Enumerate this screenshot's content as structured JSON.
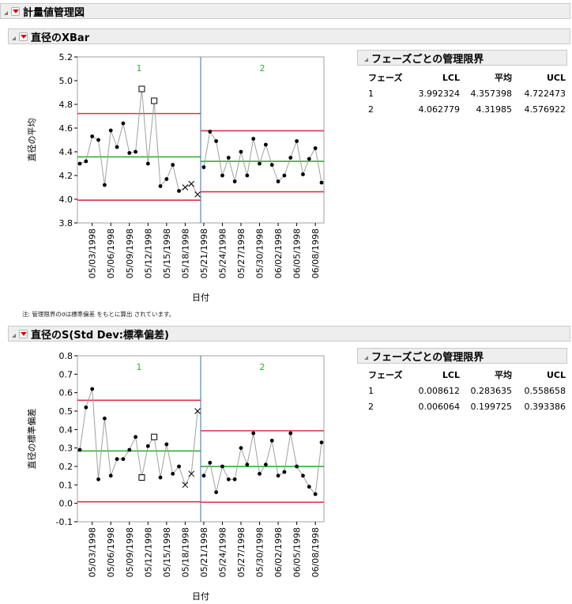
{
  "report": {
    "title": "計量値管理図"
  },
  "xbar": {
    "title": "直径のXBar",
    "ylabel": "直径の平均",
    "xlabel": "日付",
    "limits_title": "フェーズごとの管理限界",
    "limits_columns": [
      "フェーズ",
      "LCL",
      "平均",
      "UCL"
    ],
    "limits_rows": [
      [
        "1",
        "3.992324",
        "4.357398",
        "4.722473"
      ],
      [
        "2",
        "4.062779",
        "4.31985",
        "4.576922"
      ]
    ]
  },
  "note": "注: 管理限界のσは標準偏差 をもとに算出 されています。",
  "s": {
    "title": "直径のS(Std Dev:標準偏差)",
    "ylabel": "直径の標準偏差",
    "xlabel": "日付",
    "limits_title": "フェーズごとの管理限界",
    "limits_columns": [
      "フェーズ",
      "LCL",
      "平均",
      "UCL"
    ],
    "limits_rows": [
      [
        "1",
        "0.008612",
        "0.283635",
        "0.558658"
      ],
      [
        "2",
        "0.006064",
        "0.199725",
        "0.393386"
      ]
    ]
  },
  "colors": {
    "limit": "#e0304a",
    "center": "#2fb02f",
    "phase_label": "#2fb02f",
    "phase_divider": "#3070c0",
    "line": "#a0a0a0",
    "point": "#000000"
  },
  "chart_data": [
    {
      "type": "line",
      "title": "直径のXBar",
      "xlabel": "日付",
      "ylabel": "直径の平均",
      "ylim": [
        3.8,
        5.2
      ],
      "yticks": [
        "3.8",
        "4.0",
        "4.2",
        "4.4",
        "4.6",
        "4.8",
        "5.0",
        "5.2"
      ],
      "xticks": [
        "05/03/1998",
        "05/06/1998",
        "05/09/1998",
        "05/12/1998",
        "05/15/1998",
        "05/18/1998",
        "05/21/1998",
        "05/24/1998",
        "05/27/1998",
        "05/30/1998",
        "06/02/1998",
        "06/05/1998",
        "06/08/1998"
      ],
      "phases": [
        {
          "label": "1",
          "lcl": 3.992324,
          "mean": 4.357398,
          "ucl": 4.722473,
          "dates": [
            "05/01/1998",
            "05/02/1998",
            "05/03/1998",
            "05/04/1998",
            "05/05/1998",
            "05/06/1998",
            "05/07/1998",
            "05/08/1998",
            "05/09/1998",
            "05/10/1998",
            "05/11/1998",
            "05/12/1998",
            "05/13/1998",
            "05/14/1998",
            "05/15/1998",
            "05/16/1998",
            "05/17/1998",
            "05/18/1998",
            "05/19/1998",
            "05/20/1998"
          ],
          "values": [
            4.3,
            4.32,
            4.53,
            4.5,
            4.12,
            4.58,
            4.44,
            4.64,
            4.39,
            4.4,
            4.93,
            4.3,
            4.83,
            4.11,
            4.17,
            4.29,
            4.07,
            4.1,
            4.13,
            4.04
          ],
          "markers": [
            "dot",
            "dot",
            "dot",
            "dot",
            "dot",
            "dot",
            "dot",
            "dot",
            "dot",
            "dot",
            "square",
            "dot",
            "square",
            "dot",
            "dot",
            "dot",
            "dot",
            "x",
            "x",
            "x"
          ]
        },
        {
          "label": "2",
          "lcl": 4.062779,
          "mean": 4.31985,
          "ucl": 4.576922,
          "dates": [
            "05/21/1998",
            "05/22/1998",
            "05/23/1998",
            "05/24/1998",
            "05/25/1998",
            "05/26/1998",
            "05/27/1998",
            "05/28/1998",
            "05/29/1998",
            "05/30/1998",
            "05/31/1998",
            "06/01/1998",
            "06/02/1998",
            "06/03/1998",
            "06/04/1998",
            "06/05/1998",
            "06/06/1998",
            "06/07/1998",
            "06/08/1998",
            "06/09/1998"
          ],
          "values": [
            4.27,
            4.57,
            4.49,
            4.2,
            4.35,
            4.15,
            4.4,
            4.2,
            4.51,
            4.3,
            4.46,
            4.29,
            4.15,
            4.2,
            4.35,
            4.49,
            4.21,
            4.34,
            4.43,
            4.14
          ],
          "markers": [
            "dot",
            "dot",
            "dot",
            "dot",
            "dot",
            "dot",
            "dot",
            "dot",
            "dot",
            "dot",
            "dot",
            "dot",
            "dot",
            "dot",
            "dot",
            "dot",
            "dot",
            "dot",
            "dot",
            "dot"
          ]
        }
      ]
    },
    {
      "type": "line",
      "title": "直径のS(Std Dev:標準偏差)",
      "xlabel": "日付",
      "ylabel": "直径の標準偏差",
      "ylim": [
        -0.1,
        0.8
      ],
      "yticks": [
        "-0.1",
        "0.0",
        "0.1",
        "0.2",
        "0.3",
        "0.4",
        "0.5",
        "0.6",
        "0.7",
        "0.8"
      ],
      "xticks": [
        "05/03/1998",
        "05/06/1998",
        "05/09/1998",
        "05/12/1998",
        "05/15/1998",
        "05/18/1998",
        "05/21/1998",
        "05/24/1998",
        "05/27/1998",
        "05/30/1998",
        "06/02/1998",
        "06/05/1998",
        "06/08/1998"
      ],
      "phases": [
        {
          "label": "1",
          "lcl": 0.008612,
          "mean": 0.283635,
          "ucl": 0.558658,
          "dates": [
            "05/01/1998",
            "05/02/1998",
            "05/03/1998",
            "05/04/1998",
            "05/05/1998",
            "05/06/1998",
            "05/07/1998",
            "05/08/1998",
            "05/09/1998",
            "05/10/1998",
            "05/11/1998",
            "05/12/1998",
            "05/13/1998",
            "05/14/1998",
            "05/15/1998",
            "05/16/1998",
            "05/17/1998",
            "05/18/1998",
            "05/19/1998",
            "05/20/1998"
          ],
          "values": [
            0.29,
            0.52,
            0.62,
            0.13,
            0.46,
            0.15,
            0.24,
            0.24,
            0.29,
            0.36,
            0.14,
            0.31,
            0.36,
            0.14,
            0.32,
            0.16,
            0.2,
            0.1,
            0.16,
            0.5
          ],
          "markers": [
            "dot",
            "dot",
            "dot",
            "dot",
            "dot",
            "dot",
            "dot",
            "dot",
            "dot",
            "dot",
            "square",
            "dot",
            "square",
            "dot",
            "dot",
            "dot",
            "dot",
            "x",
            "x",
            "x"
          ]
        },
        {
          "label": "2",
          "lcl": 0.006064,
          "mean": 0.199725,
          "ucl": 0.393386,
          "dates": [
            "05/21/1998",
            "05/22/1998",
            "05/23/1998",
            "05/24/1998",
            "05/25/1998",
            "05/26/1998",
            "05/27/1998",
            "05/28/1998",
            "05/29/1998",
            "05/30/1998",
            "05/31/1998",
            "06/01/1998",
            "06/02/1998",
            "06/03/1998",
            "06/04/1998",
            "06/05/1998",
            "06/06/1998",
            "06/07/1998",
            "06/08/1998",
            "06/09/1998"
          ],
          "values": [
            0.15,
            0.22,
            0.06,
            0.2,
            0.13,
            0.13,
            0.3,
            0.21,
            0.38,
            0.16,
            0.21,
            0.34,
            0.15,
            0.17,
            0.38,
            0.2,
            0.15,
            0.09,
            0.05,
            0.33
          ],
          "markers": [
            "dot",
            "dot",
            "dot",
            "dot",
            "dot",
            "dot",
            "dot",
            "dot",
            "dot",
            "dot",
            "dot",
            "dot",
            "dot",
            "dot",
            "dot",
            "dot",
            "dot",
            "dot",
            "dot",
            "dot"
          ]
        }
      ]
    }
  ]
}
